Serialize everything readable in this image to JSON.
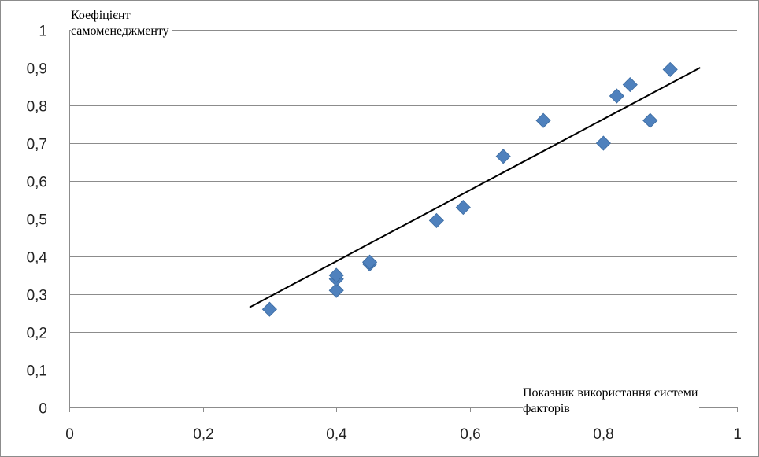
{
  "chart_data": {
    "type": "scatter",
    "ylabel_lines": [
      "Коефіцієнт",
      "самоменеджменту"
    ],
    "xlabel_lines": [
      "Показник використання системи",
      "факторів"
    ],
    "xlim": [
      0,
      1
    ],
    "ylim": [
      0,
      1
    ],
    "x_ticks": [
      0,
      0.2,
      0.4,
      0.6,
      0.8,
      1
    ],
    "y_ticks": [
      0,
      0.1,
      0.2,
      0.3,
      0.4,
      0.5,
      0.6,
      0.7,
      0.8,
      0.9,
      1
    ],
    "x_tick_labels": [
      "0",
      "0,2",
      "0,4",
      "0,6",
      "0,8",
      "1"
    ],
    "y_tick_labels": [
      "0",
      "0,1",
      "0,2",
      "0,3",
      "0,4",
      "0,5",
      "0,6",
      "0,7",
      "0,8",
      "0,9",
      "1"
    ],
    "grid": "horizontal",
    "marker": "diamond",
    "marker_color": "#4f81bd",
    "line_color": "#000000",
    "points": [
      {
        "x": 0.3,
        "y": 0.26
      },
      {
        "x": 0.4,
        "y": 0.31
      },
      {
        "x": 0.4,
        "y": 0.34
      },
      {
        "x": 0.4,
        "y": 0.35
      },
      {
        "x": 0.45,
        "y": 0.38
      },
      {
        "x": 0.45,
        "y": 0.385
      },
      {
        "x": 0.55,
        "y": 0.495
      },
      {
        "x": 0.59,
        "y": 0.53
      },
      {
        "x": 0.65,
        "y": 0.665
      },
      {
        "x": 0.71,
        "y": 0.76
      },
      {
        "x": 0.8,
        "y": 0.7
      },
      {
        "x": 0.82,
        "y": 0.825
      },
      {
        "x": 0.84,
        "y": 0.855
      },
      {
        "x": 0.87,
        "y": 0.76
      },
      {
        "x": 0.9,
        "y": 0.895
      }
    ],
    "trendline": {
      "x": [
        0.27,
        0.945
      ],
      "y": [
        0.265,
        0.9
      ]
    }
  }
}
